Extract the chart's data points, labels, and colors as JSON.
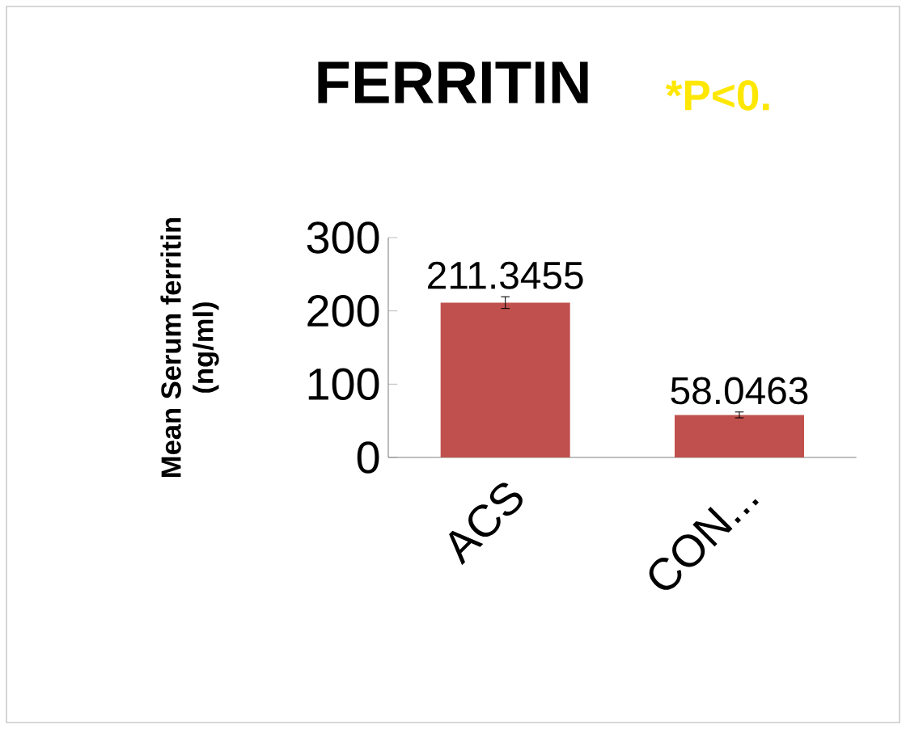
{
  "chart_data": {
    "type": "bar",
    "title": "FERRITIN",
    "ylabel": "Mean Serum ferritin (ng/ml)",
    "annotations": [
      "*P<0."
    ],
    "categories": [
      "ACS",
      "CON..."
    ],
    "values": [
      211.3455,
      58.0463
    ],
    "value_labels": [
      "211.3455",
      "58.0463"
    ],
    "errors": [
      8,
      4
    ],
    "color": "#c0504d",
    "ylim": [
      0,
      300
    ],
    "yticks": [
      0,
      100,
      200,
      300
    ],
    "grid": false
  }
}
